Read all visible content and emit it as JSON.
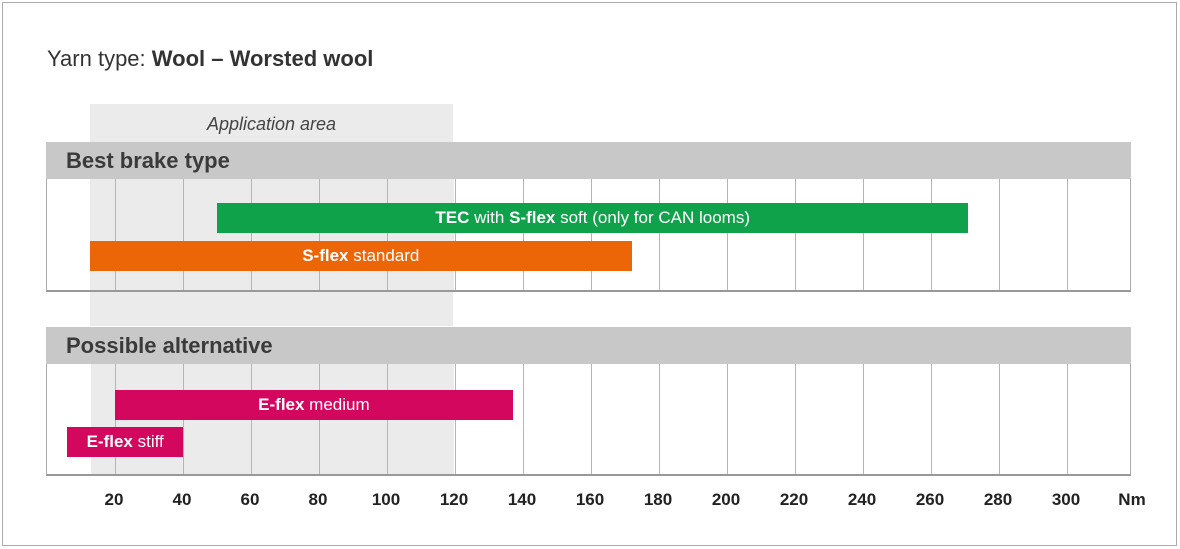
{
  "title": {
    "prefix": "Yarn type: ",
    "bold": "Wool – Worsted wool"
  },
  "application_area_label": "Application area",
  "sections": [
    {
      "name": "Best brake type",
      "bars": [
        {
          "bold1": "TEC",
          "mid": " with ",
          "bold2": "S-flex",
          "rest": " soft (only for CAN looms)",
          "start": 50,
          "end": 271,
          "color": "#0fa24a"
        },
        {
          "bold1": "S-flex",
          "mid": "",
          "bold2": "",
          "rest": " standard",
          "start": 12.6,
          "end": 172,
          "color": "#ec6608"
        }
      ]
    },
    {
      "name": "Possible alternative",
      "bars": [
        {
          "bold1": "E-flex",
          "mid": "",
          "bold2": "",
          "rest": " medium",
          "start": 20,
          "end": 137,
          "color": "#d4075e"
        },
        {
          "bold1": "E-flex",
          "mid": "",
          "bold2": "",
          "rest": " stiff",
          "start": 6,
          "end": 40,
          "color": "#d4075e"
        }
      ]
    }
  ],
  "axis": {
    "unit": "Nm",
    "ticks": [
      20,
      40,
      60,
      80,
      100,
      120,
      140,
      160,
      180,
      200,
      220,
      240,
      260,
      280,
      300
    ]
  },
  "chart_data": {
    "type": "bar",
    "orientation": "horizontal-range",
    "title": "Yarn type: Wool – Worsted wool",
    "xlabel": "Nm",
    "xlim": [
      0,
      320
    ],
    "application_area": [
      12.6,
      120
    ],
    "series": [
      {
        "group": "Best brake type",
        "name": "TEC with S-flex soft (only for CAN looms)",
        "start": 50,
        "end": 271
      },
      {
        "group": "Best brake type",
        "name": "S-flex standard",
        "start": 12.6,
        "end": 172
      },
      {
        "group": "Possible alternative",
        "name": "E-flex medium",
        "start": 20,
        "end": 137
      },
      {
        "group": "Possible alternative",
        "name": "E-flex stiff",
        "start": 6,
        "end": 40
      }
    ],
    "grid": true
  }
}
